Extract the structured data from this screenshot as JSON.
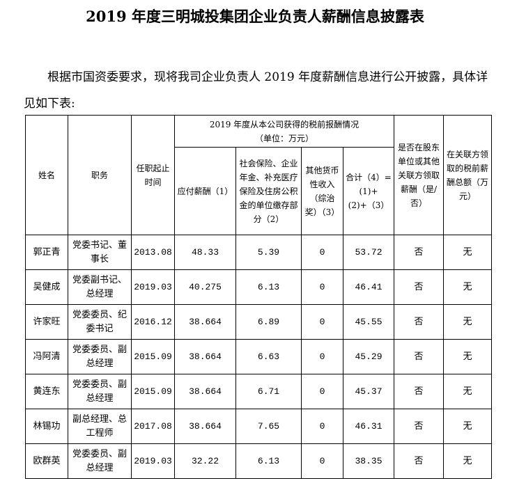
{
  "title": "2019 年度三明城投集团企业负责人薪酬信息披露表",
  "intro": "根据市国资委要求，现将我司企业负责人 2019 年度薪酬信息进行公开披露，具体详见如下表:",
  "table": {
    "headers": {
      "name": "姓名",
      "position": "职务",
      "term": "任职起止时间",
      "group": "2019 年度从本公司获得的税前报酬情况",
      "group_unit": "（单位：万元）",
      "salary": "应付薪酬（1）",
      "insurance": "社会保险、企业年金、补充医疗保险及住房公积金的单位缴存部分（2）",
      "other": "其他货币性收入（综治奖）（3）",
      "total": "合计（4）=(1)+(2)+（3）",
      "shareholder": "是否在股东单位或其他关联方领取薪酬（是/否）",
      "related": "在关联方领取的税前薪酬总额（万元）"
    },
    "rows": [
      {
        "name": "郭正青",
        "position": "党委书记、董事长",
        "term": "2013.08",
        "salary": "48.33",
        "insurance": "5.39",
        "other": "0",
        "total": "53.72",
        "shareholder": "否",
        "related": "无"
      },
      {
        "name": "吴健成",
        "position": "党委副书记、总经理",
        "term": "2019.03",
        "salary": "40.275",
        "insurance": "6.13",
        "other": "0",
        "total": "46.41",
        "shareholder": "否",
        "related": "无"
      },
      {
        "name": "许家旺",
        "position": "党委委员、纪委书记",
        "term": "2016.12",
        "salary": "38.664",
        "insurance": "6.89",
        "other": "0",
        "total": "45.55",
        "shareholder": "否",
        "related": "无"
      },
      {
        "name": "冯阿清",
        "position": "党委委员、副总经理",
        "term": "2015.09",
        "salary": "38.664",
        "insurance": "6.63",
        "other": "0",
        "total": "45.29",
        "shareholder": "否",
        "related": "无"
      },
      {
        "name": "黄连东",
        "position": "党委委员、副总经理",
        "term": "2015.09",
        "salary": "38.664",
        "insurance": "6.71",
        "other": "0",
        "total": "45.37",
        "shareholder": "否",
        "related": "无"
      },
      {
        "name": "林锡功",
        "position": "副总经理、总工程师",
        "term": "2017.08",
        "salary": "38.664",
        "insurance": "7.65",
        "other": "0",
        "total": "46.31",
        "shareholder": "否",
        "related": "无"
      },
      {
        "name": "欧群英",
        "position": "党委委员、副总经理",
        "term": "2019.03",
        "salary": "32.22",
        "insurance": "6.13",
        "other": "0",
        "total": "38.35",
        "shareholder": "否",
        "related": "无"
      }
    ]
  }
}
